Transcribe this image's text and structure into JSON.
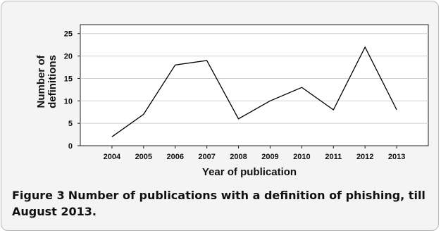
{
  "chart_data": {
    "type": "line",
    "xlabel": "Year of publication",
    "ylabel_lines": [
      "Number of",
      "definitions"
    ],
    "x": [
      "2004",
      "2005",
      "2006",
      "2007",
      "2008",
      "2009",
      "2010",
      "2011",
      "2012",
      "2013"
    ],
    "series": [
      {
        "values": [
          2,
          7,
          18,
          19,
          6,
          10,
          13,
          8,
          22,
          8
        ]
      }
    ],
    "yticks": [
      0,
      5,
      10,
      15,
      20,
      25
    ],
    "ylim": [
      0,
      27
    ],
    "grid": "horizontal",
    "line_color": "#000000"
  },
  "caption": {
    "label": "Figure 3",
    "text": "Number of publications with a definition of phishing, till August 2013."
  }
}
